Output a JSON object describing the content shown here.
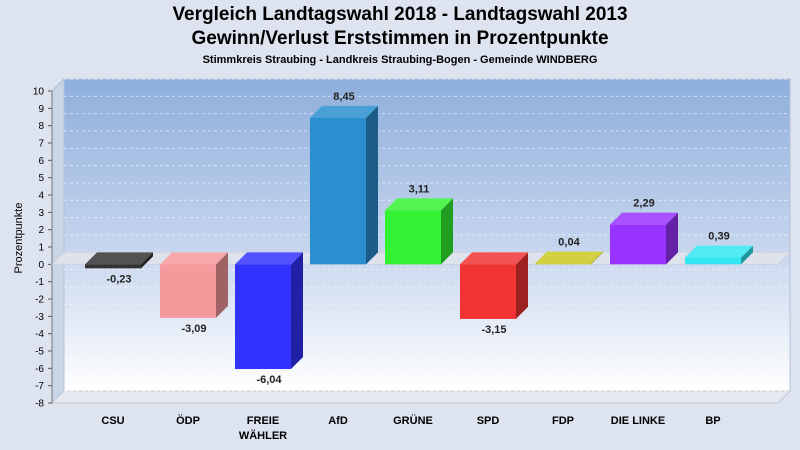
{
  "chart_data": {
    "type": "bar",
    "title": "Vergleich Landtagswahl 2018 - Landtagswahl 2013",
    "subtitle": "Gewinn/Verlust Erststimmen in Prozentpunkte",
    "subtitle2": "Stimmkreis Straubing - Landkreis Straubing-Bogen - Gemeinde WINDBERG",
    "ylabel": "Prozentpunkte",
    "ylim": [
      -8,
      10
    ],
    "ytick_labels": [
      "10",
      "9",
      "8",
      "7",
      "6",
      "5",
      "4",
      "3",
      "2",
      "1",
      "0",
      "-1",
      "-2",
      "-3",
      "-4",
      "-5",
      "-6",
      "-7",
      "-8"
    ],
    "categories": [
      "CSU",
      "ÖDP",
      "FREIE\nWÄHLER",
      "AfD",
      "GRÜNE",
      "SPD",
      "FDP",
      "DIE LINKE",
      "BP"
    ],
    "values": [
      -0.23,
      -3.09,
      -6.04,
      8.45,
      3.11,
      -3.15,
      0.04,
      2.29,
      0.39
    ],
    "value_labels": [
      "-0,23",
      "-3,09",
      "-6,04",
      "8,45",
      "3,11",
      "-3,15",
      "0,04",
      "2,29",
      "0,39"
    ],
    "colors": [
      "#333333",
      "#f4999c",
      "#3333ff",
      "#2a8fcf",
      "#33f233",
      "#f23333",
      "#c9c920",
      "#9933ff",
      "#33e6f2"
    ],
    "grid": true
  }
}
